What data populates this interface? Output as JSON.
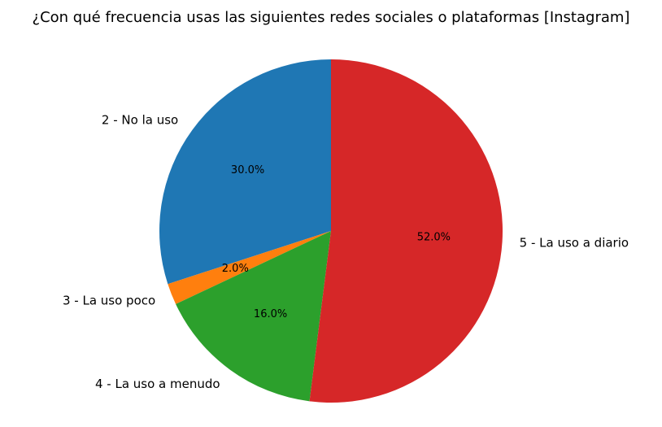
{
  "chart_data": {
    "type": "pie",
    "title": "¿Con qué frecuencia usas las siguientes redes sociales o plataformas [Instagram]",
    "slices": [
      {
        "label": "2 - No la uso",
        "value": 30.0,
        "pct_label": "30.0%",
        "color": "#1f77b4"
      },
      {
        "label": "3 - La uso poco",
        "value": 2.0,
        "pct_label": "2.0%",
        "color": "#ff7f0e"
      },
      {
        "label": "4 - La uso a menudo",
        "value": 16.0,
        "pct_label": "16.0%",
        "color": "#2ca02c"
      },
      {
        "label": "5 - La uso a diario",
        "value": 52.0,
        "pct_label": "52.0%",
        "color": "#d62728"
      }
    ],
    "start_angle_deg": 90,
    "direction": "counterclockwise"
  }
}
